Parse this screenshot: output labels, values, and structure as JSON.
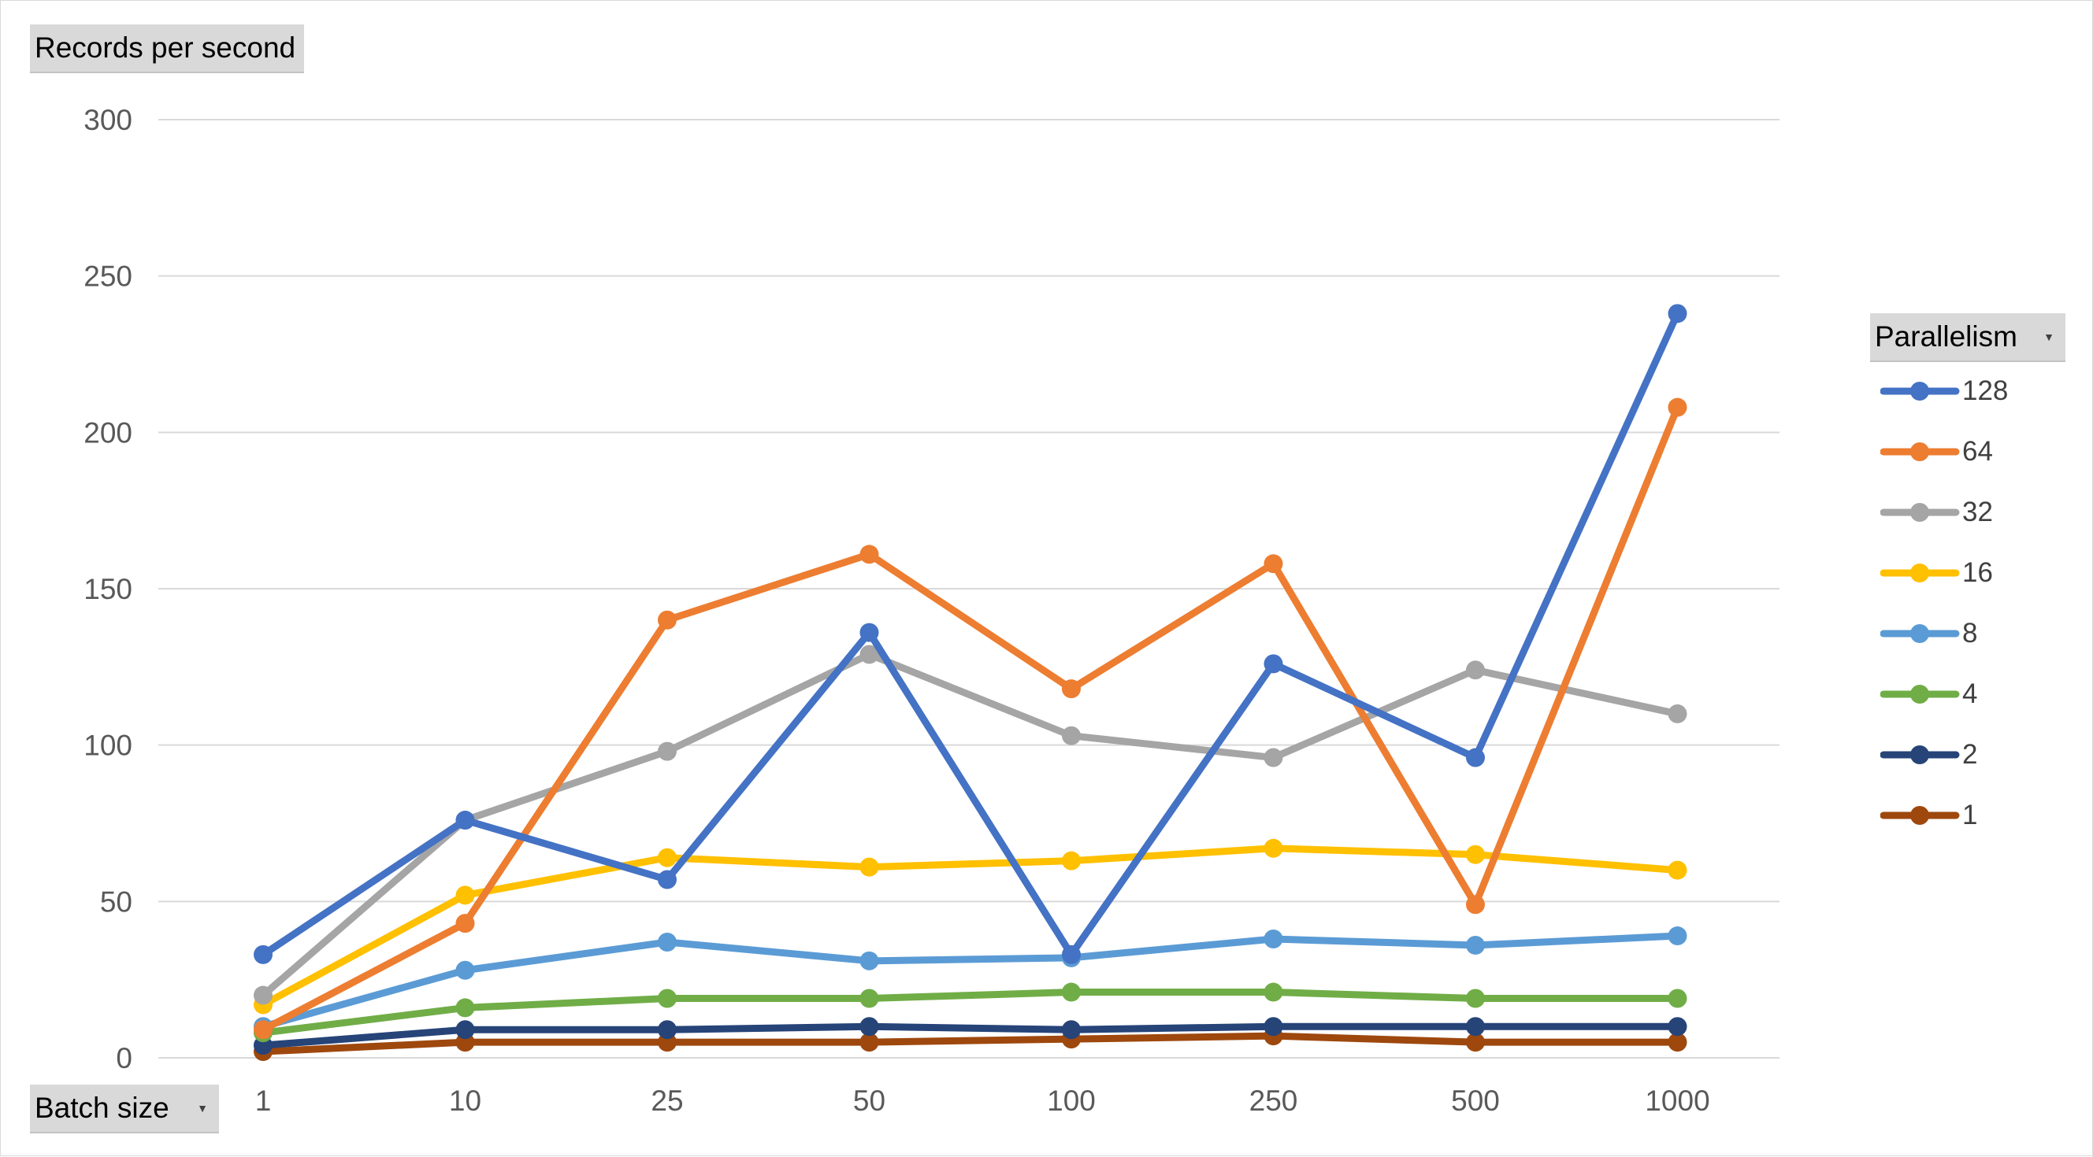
{
  "chart_data": {
    "type": "line",
    "ylabel": "Records per second",
    "xlabel": "Batch size",
    "legend_title": "Parallelism",
    "legend_position": "right",
    "grid": true,
    "ylim": [
      0,
      300
    ],
    "yticks": [
      0,
      50,
      100,
      150,
      200,
      250,
      300
    ],
    "categories": [
      "1",
      "10",
      "25",
      "50",
      "100",
      "250",
      "500",
      "1000"
    ],
    "series": [
      {
        "name": "128",
        "color": "#4472c4",
        "values": [
          33,
          76,
          57,
          136,
          33,
          126,
          96,
          238
        ]
      },
      {
        "name": "64",
        "color": "#ed7d31",
        "values": [
          9,
          43,
          140,
          161,
          118,
          158,
          49,
          208
        ]
      },
      {
        "name": "32",
        "color": "#a5a5a5",
        "values": [
          20,
          76,
          98,
          129,
          103,
          96,
          124,
          110
        ]
      },
      {
        "name": "16",
        "color": "#ffc000",
        "values": [
          17,
          52,
          64,
          61,
          63,
          67,
          65,
          60
        ]
      },
      {
        "name": "8",
        "color": "#5b9bd5",
        "values": [
          10,
          28,
          37,
          31,
          32,
          38,
          36,
          39
        ]
      },
      {
        "name": "4",
        "color": "#70ad47",
        "values": [
          8,
          16,
          19,
          19,
          21,
          21,
          19,
          19
        ]
      },
      {
        "name": "2",
        "color": "#264478",
        "values": [
          4,
          9,
          9,
          10,
          9,
          10,
          10,
          10
        ]
      },
      {
        "name": "1",
        "color": "#9e480e",
        "values": [
          2,
          5,
          5,
          5,
          6,
          7,
          5,
          5
        ]
      }
    ]
  }
}
